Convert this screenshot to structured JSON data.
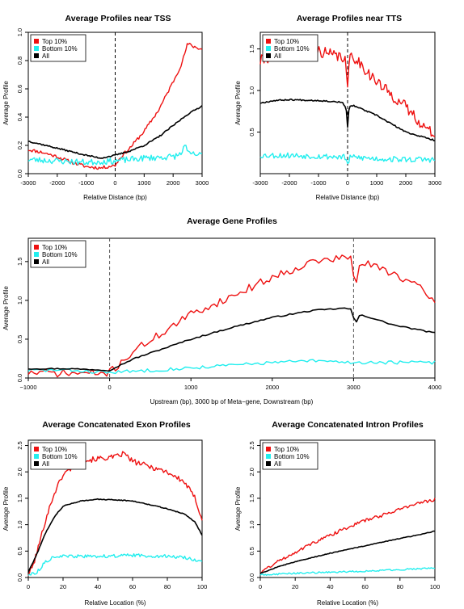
{
  "figure": {
    "background": "#ffffff"
  },
  "colors": {
    "top": "#ee1111",
    "bottom": "#22eeee",
    "all": "#000000",
    "marker_line": "#555555"
  },
  "chart_data": [
    {
      "id": "tss",
      "type": "line",
      "title": "Average Profiles near TSS",
      "xlabel": "Relative Distance (bp)",
      "ylabel": "Average Profile",
      "xlim": [
        -3000,
        3000
      ],
      "ylim": [
        0,
        1.0
      ],
      "xticks": [
        "-3000",
        "-2000",
        "-1000",
        "0",
        "1000",
        "2000",
        "3000"
      ],
      "yticks": [
        "0.0",
        "0.2",
        "0.4",
        "0.6",
        "0.8",
        "1.0"
      ],
      "vlines": [
        0
      ],
      "grid": false,
      "legend_position": "top-left",
      "series": [
        {
          "name": "Top 10%",
          "color_key": "top",
          "noise": 0.012,
          "seed": 11,
          "points": [
            [
              -3000,
              0.17
            ],
            [
              -2500,
              0.15
            ],
            [
              -2000,
              0.12
            ],
            [
              -1500,
              0.08
            ],
            [
              -1000,
              0.05
            ],
            [
              -500,
              0.04
            ],
            [
              0,
              0.06
            ],
            [
              200,
              0.12
            ],
            [
              500,
              0.18
            ],
            [
              1000,
              0.3
            ],
            [
              1500,
              0.45
            ],
            [
              2000,
              0.65
            ],
            [
              2300,
              0.78
            ],
            [
              2500,
              0.92
            ],
            [
              2700,
              0.9
            ],
            [
              3000,
              0.88
            ]
          ]
        },
        {
          "name": "Bottom 10%",
          "color_key": "bottom",
          "noise": 0.022,
          "seed": 23,
          "points": [
            [
              -3000,
              0.1
            ],
            [
              -2000,
              0.09
            ],
            [
              -1000,
              0.08
            ],
            [
              0,
              0.09
            ],
            [
              1000,
              0.11
            ],
            [
              2000,
              0.12
            ],
            [
              2300,
              0.14
            ],
            [
              2400,
              0.22
            ],
            [
              2500,
              0.14
            ],
            [
              3000,
              0.13
            ]
          ]
        },
        {
          "name": "All",
          "color_key": "all",
          "noise": 0.005,
          "seed": 37,
          "points": [
            [
              -3000,
              0.23
            ],
            [
              -2000,
              0.18
            ],
            [
              -1000,
              0.13
            ],
            [
              -500,
              0.11
            ],
            [
              0,
              0.13
            ],
            [
              500,
              0.16
            ],
            [
              1000,
              0.2
            ],
            [
              1500,
              0.26
            ],
            [
              2000,
              0.34
            ],
            [
              2500,
              0.42
            ],
            [
              3000,
              0.48
            ]
          ]
        }
      ]
    },
    {
      "id": "tts",
      "type": "line",
      "title": "Average Profiles near TTS",
      "xlabel": "Relative Distance (bp)",
      "ylabel": "Average Profile",
      "xlim": [
        -3000,
        3000
      ],
      "ylim": [
        0,
        1.7
      ],
      "xticks": [
        "-3000",
        "-2000",
        "-1000",
        "0",
        "1000",
        "2000",
        "3000"
      ],
      "yticks": [
        "0.5",
        "1.0",
        "1.5"
      ],
      "vlines": [
        0
      ],
      "grid": false,
      "legend_position": "top-left",
      "series": [
        {
          "name": "Top 10%",
          "color_key": "top",
          "noise": 0.07,
          "seed": 41,
          "points": [
            [
              -3000,
              1.35
            ],
            [
              -2500,
              1.45
            ],
            [
              -2000,
              1.48
            ],
            [
              -1500,
              1.5
            ],
            [
              -1000,
              1.48
            ],
            [
              -500,
              1.42
            ],
            [
              -100,
              1.4
            ],
            [
              0,
              1.05
            ],
            [
              100,
              1.45
            ],
            [
              500,
              1.3
            ],
            [
              1000,
              1.1
            ],
            [
              1500,
              0.95
            ],
            [
              2000,
              0.8
            ],
            [
              2500,
              0.62
            ],
            [
              2800,
              0.5
            ],
            [
              3000,
              0.5
            ]
          ]
        },
        {
          "name": "Bottom 10%",
          "color_key": "bottom",
          "noise": 0.035,
          "seed": 53,
          "points": [
            [
              -3000,
              0.22
            ],
            [
              -2000,
              0.22
            ],
            [
              -1000,
              0.21
            ],
            [
              -100,
              0.2
            ],
            [
              0,
              0.12
            ],
            [
              100,
              0.2
            ],
            [
              1000,
              0.18
            ],
            [
              2000,
              0.17
            ],
            [
              3000,
              0.17
            ]
          ]
        },
        {
          "name": "All",
          "color_key": "all",
          "noise": 0.008,
          "seed": 67,
          "points": [
            [
              -3000,
              0.85
            ],
            [
              -2500,
              0.88
            ],
            [
              -2000,
              0.89
            ],
            [
              -1000,
              0.88
            ],
            [
              -200,
              0.86
            ],
            [
              -50,
              0.8
            ],
            [
              0,
              0.55
            ],
            [
              50,
              0.8
            ],
            [
              200,
              0.82
            ],
            [
              1000,
              0.7
            ],
            [
              2000,
              0.5
            ],
            [
              3000,
              0.4
            ]
          ]
        }
      ]
    },
    {
      "id": "gene",
      "type": "line",
      "title": "Average Gene Profiles",
      "xlabel": "Upstream (bp), 3000 bp of Meta−gene, Downstream (bp)",
      "ylabel": "Average Profile",
      "xlim": [
        -1000,
        4000
      ],
      "ylim": [
        0,
        1.8
      ],
      "xticks": [
        "−1000",
        "0",
        "1000",
        "2000",
        "3000",
        "4000"
      ],
      "yticks": [
        "0.0",
        "0.5",
        "1.0",
        "1.5"
      ],
      "vlines": [
        0,
        3000
      ],
      "grid": false,
      "legend_position": "top-left",
      "series": [
        {
          "name": "Top 10%",
          "color_key": "top",
          "noise": 0.05,
          "seed": 71,
          "points": [
            [
              -1000,
              0.07
            ],
            [
              -500,
              0.06
            ],
            [
              -100,
              0.06
            ],
            [
              0,
              0.07
            ],
            [
              300,
              0.35
            ],
            [
              1000,
              0.82
            ],
            [
              1500,
              1.05
            ],
            [
              2000,
              1.3
            ],
            [
              2500,
              1.5
            ],
            [
              2900,
              1.55
            ],
            [
              2980,
              1.55
            ],
            [
              3020,
              1.1
            ],
            [
              3080,
              1.5
            ],
            [
              3500,
              1.35
            ],
            [
              3900,
              1.1
            ],
            [
              4000,
              0.95
            ]
          ]
        },
        {
          "name": "Bottom 10%",
          "color_key": "bottom",
          "noise": 0.022,
          "seed": 83,
          "points": [
            [
              -1000,
              0.1
            ],
            [
              -500,
              0.1
            ],
            [
              0,
              0.07
            ],
            [
              500,
              0.1
            ],
            [
              1000,
              0.13
            ],
            [
              2000,
              0.2
            ],
            [
              2500,
              0.22
            ],
            [
              3000,
              0.2
            ],
            [
              3500,
              0.2
            ],
            [
              4000,
              0.2
            ]
          ]
        },
        {
          "name": "All",
          "color_key": "all",
          "noise": 0.008,
          "seed": 97,
          "points": [
            [
              -1000,
              0.12
            ],
            [
              -500,
              0.12
            ],
            [
              0,
              0.1
            ],
            [
              300,
              0.25
            ],
            [
              1000,
              0.5
            ],
            [
              1500,
              0.65
            ],
            [
              2000,
              0.78
            ],
            [
              2500,
              0.87
            ],
            [
              2900,
              0.9
            ],
            [
              2980,
              0.88
            ],
            [
              3020,
              0.68
            ],
            [
              3080,
              0.82
            ],
            [
              3500,
              0.68
            ],
            [
              4000,
              0.58
            ]
          ]
        }
      ]
    },
    {
      "id": "exon",
      "type": "line",
      "title": "Average Concatenated Exon Profiles",
      "xlabel": "Relative Location (%)",
      "ylabel": "Average Profile",
      "xlim": [
        0,
        100
      ],
      "ylim": [
        0,
        2.6
      ],
      "xticks": [
        "0",
        "20",
        "40",
        "60",
        "80",
        "100"
      ],
      "yticks": [
        "0.0",
        "0.5",
        "1.0",
        "1.5",
        "2.0",
        "2.5"
      ],
      "vlines": [],
      "grid": false,
      "legend_position": "top-left",
      "series": [
        {
          "name": "Top 10%",
          "color_key": "top",
          "noise": 0.05,
          "seed": 101,
          "points": [
            [
              0,
              0.05
            ],
            [
              3,
              0.25
            ],
            [
              6,
              0.6
            ],
            [
              10,
              1.1
            ],
            [
              15,
              1.6
            ],
            [
              20,
              1.95
            ],
            [
              30,
              2.2
            ],
            [
              40,
              2.25
            ],
            [
              50,
              2.28
            ],
            [
              55,
              2.35
            ],
            [
              60,
              2.2
            ],
            [
              70,
              2.1
            ],
            [
              80,
              2.0
            ],
            [
              90,
              1.8
            ],
            [
              96,
              1.5
            ],
            [
              100,
              1.1
            ]
          ]
        },
        {
          "name": "Bottom 10%",
          "color_key": "bottom",
          "noise": 0.03,
          "seed": 113,
          "points": [
            [
              0,
              0.05
            ],
            [
              5,
              0.1
            ],
            [
              10,
              0.3
            ],
            [
              15,
              0.4
            ],
            [
              20,
              0.4
            ],
            [
              40,
              0.4
            ],
            [
              60,
              0.42
            ],
            [
              80,
              0.4
            ],
            [
              90,
              0.38
            ],
            [
              100,
              0.3
            ]
          ]
        },
        {
          "name": "All",
          "color_key": "all",
          "noise": 0.008,
          "seed": 127,
          "points": [
            [
              0,
              0.1
            ],
            [
              5,
              0.45
            ],
            [
              10,
              0.85
            ],
            [
              15,
              1.15
            ],
            [
              20,
              1.35
            ],
            [
              30,
              1.45
            ],
            [
              40,
              1.48
            ],
            [
              50,
              1.47
            ],
            [
              60,
              1.45
            ],
            [
              70,
              1.38
            ],
            [
              80,
              1.3
            ],
            [
              90,
              1.2
            ],
            [
              96,
              1.05
            ],
            [
              100,
              0.8
            ]
          ]
        }
      ]
    },
    {
      "id": "intron",
      "type": "line",
      "title": "Average Concatenated Intron Profiles",
      "xlabel": "Relative Location (%)",
      "ylabel": "Average Profile",
      "xlim": [
        0,
        100
      ],
      "ylim": [
        0,
        2.6
      ],
      "xticks": [
        "0",
        "20",
        "40",
        "60",
        "80",
        "100"
      ],
      "yticks": [
        "0.0",
        "0.5",
        "1.0",
        "1.5",
        "2.0",
        "2.5"
      ],
      "vlines": [],
      "grid": false,
      "legend_position": "top-left",
      "series": [
        {
          "name": "Top 10%",
          "color_key": "top",
          "noise": 0.03,
          "seed": 131,
          "points": [
            [
              0,
              0.1
            ],
            [
              10,
              0.3
            ],
            [
              20,
              0.48
            ],
            [
              30,
              0.65
            ],
            [
              40,
              0.8
            ],
            [
              50,
              0.95
            ],
            [
              60,
              1.08
            ],
            [
              70,
              1.18
            ],
            [
              80,
              1.3
            ],
            [
              90,
              1.4
            ],
            [
              100,
              1.48
            ]
          ]
        },
        {
          "name": "Bottom 10%",
          "color_key": "bottom",
          "noise": 0.015,
          "seed": 149,
          "points": [
            [
              0,
              0.05
            ],
            [
              20,
              0.08
            ],
            [
              40,
              0.1
            ],
            [
              60,
              0.12
            ],
            [
              80,
              0.15
            ],
            [
              100,
              0.18
            ]
          ]
        },
        {
          "name": "All",
          "color_key": "all",
          "noise": 0.006,
          "seed": 157,
          "points": [
            [
              0,
              0.08
            ],
            [
              10,
              0.2
            ],
            [
              20,
              0.3
            ],
            [
              30,
              0.38
            ],
            [
              40,
              0.46
            ],
            [
              50,
              0.53
            ],
            [
              60,
              0.6
            ],
            [
              70,
              0.67
            ],
            [
              80,
              0.74
            ],
            [
              90,
              0.8
            ],
            [
              100,
              0.88
            ]
          ]
        }
      ]
    }
  ]
}
